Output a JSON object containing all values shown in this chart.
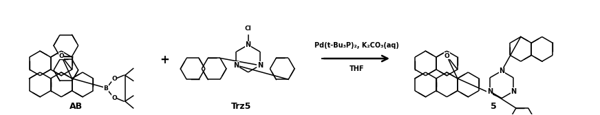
{
  "background_color": "#ffffff",
  "figsize": [
    8.72,
    1.67
  ],
  "dpi": 100,
  "label_AB": "AB",
  "label_Trz5": "Trz5",
  "label_product": "5",
  "reagents_line1": "Pd(t-Bu₃P)₂, K₂CO₃(aq)",
  "reagents_line2": "THF",
  "plus_sign": "+",
  "text_color": "#000000",
  "label_fontsize": 9,
  "reagent_fontsize": 7,
  "plus_fontsize": 12
}
